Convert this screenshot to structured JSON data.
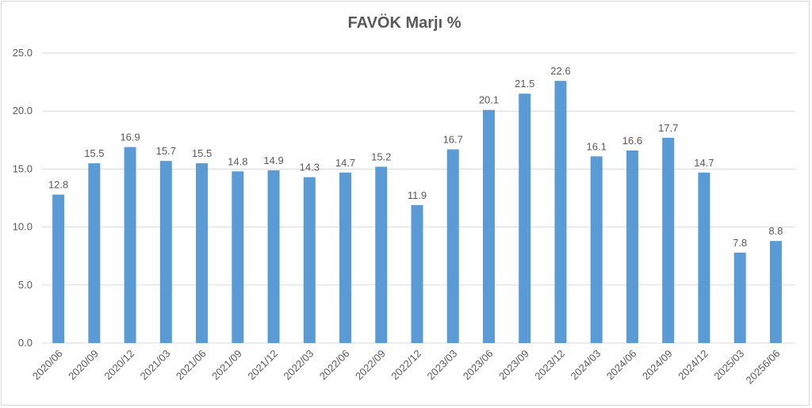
{
  "chart_data": {
    "type": "bar",
    "title": "FAVÖK Marjı %",
    "categories": [
      "2020/06",
      "2020/09",
      "2020/12",
      "2021/03",
      "2021/06",
      "2021/09",
      "2021/12",
      "2022/03",
      "2022/06",
      "2022/09",
      "2022/12",
      "2023/03",
      "2023/06",
      "2023/09",
      "2023/12",
      "2024/03",
      "2024/06",
      "2024/09",
      "2024/12",
      "2025/03",
      "20256/06"
    ],
    "values": [
      12.8,
      15.5,
      16.9,
      15.7,
      15.5,
      14.8,
      14.9,
      14.3,
      14.7,
      15.2,
      11.9,
      16.7,
      20.1,
      21.5,
      22.6,
      16.1,
      16.6,
      17.7,
      14.7,
      7.8,
      8.8
    ],
    "ylim": [
      0,
      25
    ],
    "yticks": [
      "0.0",
      "5.0",
      "10.0",
      "15.0",
      "20.0",
      "25.0"
    ],
    "grid": true,
    "bar_color": "#5b9bd5",
    "xlabel": "",
    "ylabel": ""
  }
}
